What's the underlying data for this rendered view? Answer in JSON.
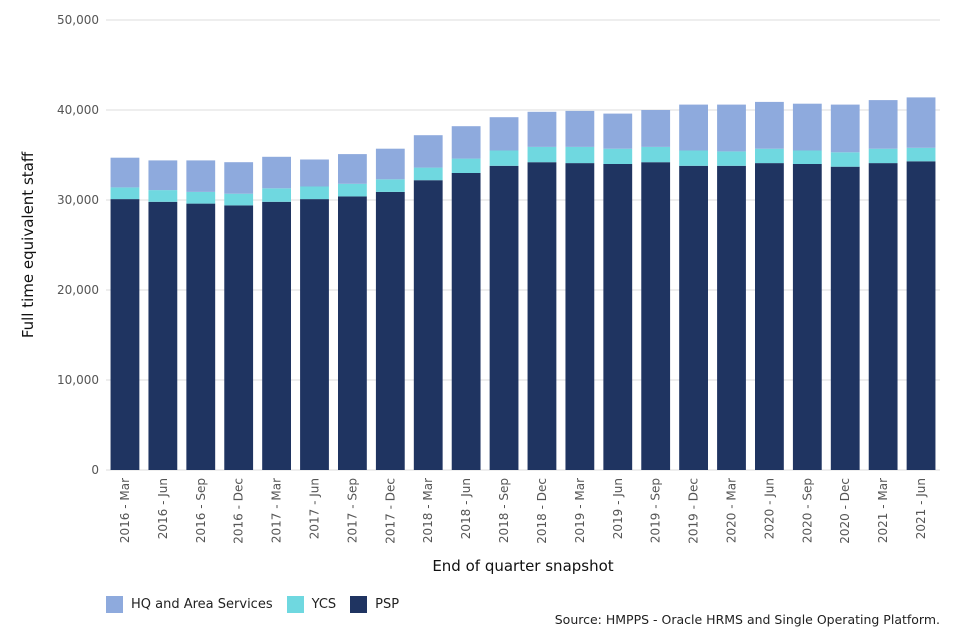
{
  "chart_data": {
    "type": "bar",
    "stacked": true,
    "title": "",
    "xlabel": "End of quarter snapshot",
    "ylabel": "Full time equivalent staff",
    "ylim": [
      0,
      50000
    ],
    "yticks": [
      0,
      10000,
      20000,
      30000,
      40000,
      50000
    ],
    "ytick_labels": [
      "0",
      "10,000",
      "20,000",
      "30,000",
      "40,000",
      "50,000"
    ],
    "grid": true,
    "legend_position": "bottom-left",
    "categories": [
      "2016 - Mar",
      "2016 - Jun",
      "2016 - Sep",
      "2016 - Dec",
      "2017 - Mar",
      "2017 - Jun",
      "2017 - Sep",
      "2017 - Dec",
      "2018 - Mar",
      "2018 - Jun",
      "2018 - Sep",
      "2018 - Dec",
      "2019 - Mar",
      "2019 - Jun",
      "2019 - Sep",
      "2019 - Dec",
      "2020 - Mar",
      "2020 - Jun",
      "2020 - Sep",
      "2020 - Dec",
      "2021 - Mar",
      "2021 - Jun"
    ],
    "series": [
      {
        "name": "PSP",
        "color": "#1f3461",
        "values": [
          30100,
          29800,
          29600,
          29400,
          29800,
          30100,
          30400,
          30900,
          32200,
          33000,
          33800,
          34200,
          34100,
          34000,
          34200,
          33800,
          33800,
          34100,
          34000,
          33700,
          34100,
          34300
        ]
      },
      {
        "name": "YCS",
        "color": "#6fd8e0",
        "values": [
          1300,
          1300,
          1300,
          1300,
          1500,
          1400,
          1400,
          1400,
          1400,
          1600,
          1700,
          1700,
          1800,
          1700,
          1700,
          1700,
          1600,
          1600,
          1500,
          1600,
          1600,
          1500
        ]
      },
      {
        "name": "HQ and Area Services",
        "color": "#8eaadd",
        "values": [
          3300,
          3300,
          3500,
          3500,
          3500,
          3000,
          3300,
          3400,
          3600,
          3600,
          3700,
          3900,
          4000,
          3900,
          4100,
          5100,
          5200,
          5200,
          5200,
          5300,
          5400,
          5600
        ]
      }
    ],
    "legend_order": [
      "HQ and Area Services",
      "YCS",
      "PSP"
    ],
    "source": "Source: HMPPS - Oracle HRMS and Single Operating Platform."
  }
}
